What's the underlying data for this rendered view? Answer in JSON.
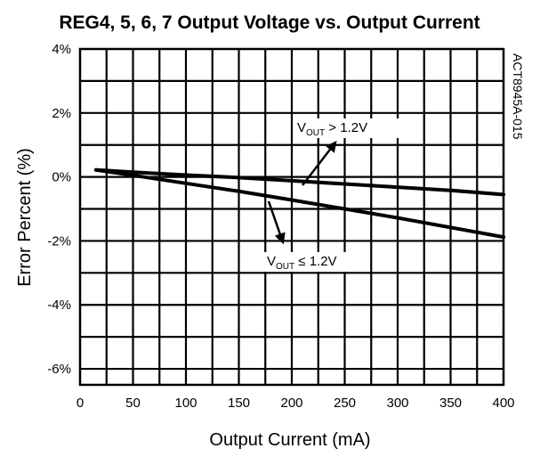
{
  "chart_data": {
    "type": "line",
    "title": "REG4, 5, 6, 7 Output Voltage vs. Output Current",
    "xlabel": "Output Current (mA)",
    "ylabel": "Error Percent (%)",
    "figure_id": "ACT8945A-015",
    "xlim": [
      0,
      400
    ],
    "ylim": [
      -6.5,
      4
    ],
    "x_ticks": [
      0,
      50,
      100,
      150,
      200,
      250,
      300,
      350,
      400
    ],
    "x_tick_labels": [
      "0",
      "50",
      "100",
      "150",
      "200",
      "250",
      "300",
      "350",
      "400"
    ],
    "y_ticks": [
      4,
      2,
      0,
      -2,
      -4,
      -6
    ],
    "y_tick_labels": [
      "4%",
      "2%",
      "0%",
      "-2%",
      "-4%",
      "-6%"
    ],
    "grid": true,
    "series": [
      {
        "name": "",
        "x": [
          15,
          50,
          100,
          150,
          200,
          250,
          300,
          350,
          400
        ],
        "y": [
          0.22,
          0.15,
          0.06,
          -0.02,
          -0.12,
          -0.22,
          -0.32,
          -0.42,
          -0.55
        ]
      },
      {
        "name": "",
        "x": [
          15,
          50,
          100,
          150,
          200,
          250,
          300,
          350,
          400
        ],
        "y": [
          0.22,
          0.05,
          -0.2,
          -0.45,
          -0.72,
          -1.0,
          -1.28,
          -1.58,
          -1.88
        ]
      }
    ],
    "annotations": [
      {
        "prefix": "V",
        "sub": "OUT",
        "suffix": " > 1.2V",
        "points_to_series": 0
      },
      {
        "prefix": "V",
        "sub": "OUT",
        "suffix": " ≤ 1.2V",
        "points_to_series": 1
      }
    ]
  }
}
